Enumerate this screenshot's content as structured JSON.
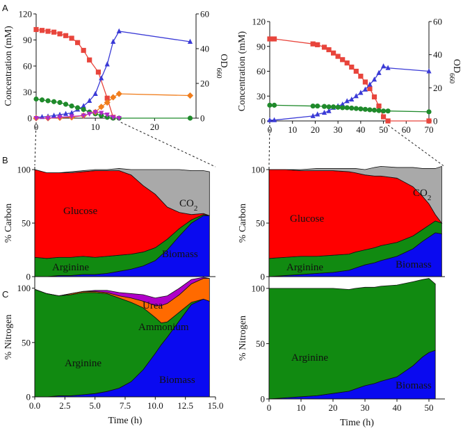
{
  "panel_letters": {
    "a": "A",
    "b": "B",
    "c": "C"
  },
  "chart_data": [
    {
      "id": "A-left",
      "type": "line",
      "ylabel": "Concentration (mM)",
      "y2label_main": "OD",
      "y2label_sub": "660",
      "xlim": [
        0,
        27
      ],
      "ylim": [
        0,
        120
      ],
      "y2lim": [
        0,
        60
      ],
      "xticks": [
        0,
        10,
        20
      ],
      "yticks": [
        0,
        30,
        60,
        90,
        120
      ],
      "y2ticks": [
        0,
        20,
        40,
        60
      ],
      "series": [
        {
          "name": "Glucose",
          "color": "#e8453c",
          "marker": "square",
          "axis": "left",
          "x": [
            0,
            1,
            2,
            3,
            4,
            5,
            6,
            7,
            8,
            9,
            10.5,
            12,
            13
          ],
          "y": [
            102,
            101,
            100,
            99,
            97,
            95,
            92,
            87,
            78,
            67,
            53,
            23,
            1
          ]
        },
        {
          "name": "OD660",
          "color": "#3a3ad6",
          "marker": "triangle",
          "axis": "right",
          "x": [
            0,
            1,
            2,
            3,
            4,
            5,
            6,
            7,
            8,
            9,
            10,
            11,
            12,
            13,
            14,
            26
          ],
          "y": [
            0.5,
            0.7,
            1,
            1.5,
            2,
            2.5,
            3,
            5,
            7,
            10,
            14,
            23,
            31,
            44,
            50,
            44
          ]
        },
        {
          "name": "Arginine",
          "color": "#1f8a2b",
          "marker": "circle",
          "axis": "left",
          "x": [
            0,
            1,
            2,
            3,
            4,
            5,
            6,
            7,
            8,
            9,
            10,
            11,
            12,
            13,
            14,
            26
          ],
          "y": [
            22,
            21,
            20,
            19,
            18,
            16,
            14,
            12,
            10,
            7,
            5,
            3,
            1,
            0,
            0,
            0
          ]
        },
        {
          "name": "Ammonium",
          "color": "#f07d1c",
          "marker": "diamond",
          "axis": "left",
          "x": [
            0,
            2,
            4,
            6,
            8,
            10,
            11,
            12,
            13,
            14,
            26
          ],
          "y": [
            0,
            0,
            0.5,
            1,
            3,
            7,
            13,
            18,
            24,
            28,
            26
          ]
        },
        {
          "name": "Urea",
          "color": "#b02bc8",
          "marker": "triangle-down",
          "axis": "left",
          "x": [
            0,
            2,
            4,
            6,
            8,
            9,
            10,
            11,
            12,
            13,
            14
          ],
          "y": [
            0,
            0,
            1,
            2,
            3,
            5,
            7,
            6,
            4,
            1,
            0
          ]
        }
      ]
    },
    {
      "id": "A-right",
      "type": "line",
      "ylabel": "Concentration (mM)",
      "y2label_main": "OD",
      "y2label_sub": "660",
      "xlim": [
        0,
        70
      ],
      "ylim": [
        0,
        120
      ],
      "y2lim": [
        0,
        60
      ],
      "xticks": [
        0,
        10,
        20,
        30,
        40,
        50,
        60,
        70
      ],
      "yticks": [
        0,
        30,
        60,
        90,
        120
      ],
      "y2ticks": [
        0,
        20,
        40,
        60
      ],
      "series": [
        {
          "name": "Glucose",
          "color": "#e8453c",
          "marker": "square",
          "axis": "left",
          "x": [
            0,
            2,
            19,
            21,
            24,
            26,
            28,
            30,
            32,
            34,
            36,
            38,
            40,
            42,
            44,
            46,
            48,
            50,
            52,
            70
          ],
          "y": [
            99,
            99,
            93,
            92,
            89,
            86,
            82,
            78,
            74,
            70,
            65,
            60,
            54,
            47,
            39,
            29,
            18,
            5,
            0,
            0
          ]
        },
        {
          "name": "OD660",
          "color": "#3a3ad6",
          "marker": "triangle",
          "axis": "right",
          "x": [
            0,
            2,
            19,
            21,
            24,
            26,
            28,
            30,
            32,
            34,
            36,
            38,
            40,
            42,
            44,
            46,
            48,
            50,
            52,
            70
          ],
          "y": [
            0.5,
            0.5,
            3,
            4,
            5,
            6,
            8,
            9,
            10,
            12,
            13,
            15,
            17,
            19,
            22,
            25,
            29,
            33,
            32,
            30
          ]
        },
        {
          "name": "Arginine",
          "color": "#1f8a2b",
          "marker": "circle",
          "axis": "left",
          "x": [
            0,
            2,
            19,
            21,
            24,
            26,
            28,
            30,
            32,
            34,
            36,
            38,
            40,
            42,
            44,
            46,
            48,
            50,
            52,
            70
          ],
          "y": [
            19,
            19,
            18,
            18,
            17.5,
            17,
            17,
            16.5,
            16,
            16,
            15.5,
            15,
            14.5,
            14,
            13.5,
            13,
            12.5,
            12,
            12,
            11
          ]
        }
      ]
    },
    {
      "id": "B-left",
      "type": "area",
      "ylabel": "% Carbon",
      "xlim": [
        0,
        15
      ],
      "ylim": [
        0,
        100
      ],
      "yticks": [
        0,
        50,
        100
      ],
      "x": [
        0,
        1,
        2,
        3,
        4,
        5,
        6,
        7,
        8,
        9,
        10,
        11,
        12,
        13,
        14,
        14.5
      ],
      "series": [
        {
          "name": "Biomass",
          "color": "#0a0af0",
          "values": [
            0,
            0,
            1,
            1,
            2,
            2,
            3,
            5,
            7,
            10,
            15,
            25,
            38,
            50,
            57,
            57
          ]
        },
        {
          "name": "Arginine",
          "color": "#118a11",
          "values": [
            18,
            17,
            17,
            17,
            17,
            16,
            16,
            15,
            14,
            13,
            12,
            10,
            7,
            3,
            1,
            0
          ]
        },
        {
          "name": "Glucose",
          "color": "#ff0000",
          "values": [
            82,
            80,
            79,
            79,
            79,
            81,
            80,
            79,
            74,
            62,
            50,
            30,
            15,
            5,
            1,
            0
          ]
        },
        {
          "name": "CO2",
          "color": "#a9a9a9",
          "values": [
            0,
            0,
            0,
            1,
            1,
            1,
            1,
            2,
            5,
            15,
            23,
            35,
            40,
            41,
            40,
            41
          ]
        }
      ],
      "labels": {
        "glucose": "Glucose",
        "arginine": "Arginine",
        "biomass": "Biomass",
        "co2_main": "CO",
        "co2_sub": "2"
      }
    },
    {
      "id": "B-right",
      "type": "area",
      "ylabel": "% Carbon",
      "xlim": [
        0,
        55
      ],
      "ylim": [
        0,
        100
      ],
      "yticks": [
        0,
        50,
        100
      ],
      "x": [
        0,
        5,
        10,
        15,
        20,
        25,
        27,
        30,
        33,
        35,
        40,
        45,
        48,
        50,
        52,
        54
      ],
      "series": [
        {
          "name": "Biomass",
          "color": "#0a0af0",
          "values": [
            0,
            1,
            2,
            3,
            4,
            6,
            8,
            11,
            13,
            15,
            19,
            26,
            33,
            37,
            41,
            40
          ]
        },
        {
          "name": "Arginine",
          "color": "#118a11",
          "values": [
            17,
            17,
            17,
            16,
            16,
            15,
            15,
            14,
            14,
            14,
            13,
            12,
            11,
            11,
            11,
            10
          ]
        },
        {
          "name": "Glucose",
          "color": "#ff0000",
          "values": [
            83,
            82,
            80,
            80,
            79,
            77,
            74,
            70,
            67,
            65,
            60,
            46,
            31,
            20,
            6,
            0
          ]
        },
        {
          "name": "CO2",
          "color": "#a9a9a9",
          "values": [
            0,
            0,
            1,
            2,
            2,
            3,
            4,
            5,
            8,
            9,
            10,
            18,
            26,
            33,
            43,
            53
          ]
        }
      ],
      "labels": {
        "glucose": "Glucose",
        "arginine": "Arginine",
        "biomass": "Biomass",
        "co2_main": "CO",
        "co2_sub": "2"
      }
    },
    {
      "id": "C-left",
      "type": "area",
      "ylabel": "% Nitrogen",
      "xlabel": "Time (h)",
      "xlim": [
        0,
        15
      ],
      "ylim": [
        0,
        110
      ],
      "yticks": [
        0,
        50,
        100
      ],
      "xticks": [
        0,
        2.5,
        5,
        7.5,
        10,
        12.5,
        15
      ],
      "xtick_labels": [
        "0.0",
        "2.5",
        "5.0",
        "7.5",
        "10.0",
        "12.5",
        "15.0"
      ],
      "x": [
        0,
        1,
        2,
        3,
        4,
        5,
        6,
        7,
        8,
        9,
        10,
        10.5,
        11,
        12,
        13,
        14,
        14.5
      ],
      "series": [
        {
          "name": "Biomass",
          "color": "#0a0af0",
          "values": [
            0,
            0,
            1,
            1,
            2,
            3,
            5,
            8,
            14,
            25,
            40,
            48,
            55,
            70,
            85,
            90,
            88
          ]
        },
        {
          "name": "Arginine",
          "color": "#118a11",
          "values": [
            99,
            95,
            92,
            93,
            94,
            93,
            90,
            83,
            73,
            57,
            33,
            20,
            14,
            8,
            2,
            0,
            0
          ]
        },
        {
          "name": "Ammonium",
          "color": "#ff6a00",
          "values": [
            0,
            0,
            0,
            1,
            1,
            1,
            1,
            2,
            4,
            6,
            11,
            16,
            17,
            16,
            17,
            19,
            21
          ]
        },
        {
          "name": "Urea",
          "color": "#b000c8",
          "values": [
            0,
            0,
            0,
            0,
            0,
            1,
            2,
            3,
            4,
            6,
            7,
            8,
            7,
            6,
            4,
            1,
            0
          ]
        }
      ],
      "labels": {
        "arginine": "Arginine",
        "biomass": "Biomass",
        "ammonium": "Ammonium",
        "urea": "Urea"
      }
    },
    {
      "id": "C-right",
      "type": "area",
      "ylabel": "% Nitrogen",
      "xlabel": "Time (h)",
      "xlim": [
        0,
        55
      ],
      "ylim": [
        0,
        110
      ],
      "yticks": [
        0,
        50,
        100
      ],
      "xticks": [
        0,
        10,
        20,
        30,
        40,
        50
      ],
      "xtick_labels": [
        "0",
        "10",
        "20",
        "30",
        "40",
        "50"
      ],
      "x": [
        0,
        5,
        10,
        15,
        20,
        25,
        27,
        30,
        33,
        35,
        40,
        45,
        48,
        50,
        52
      ],
      "series": [
        {
          "name": "Biomass",
          "color": "#0a0af0",
          "values": [
            0,
            1,
            2,
            3,
            5,
            7,
            9,
            12,
            14,
            16,
            20,
            30,
            38,
            42,
            44
          ]
        },
        {
          "name": "Arginine",
          "color": "#118a11",
          "values": [
            100,
            99,
            98,
            97,
            95,
            92,
            91,
            89,
            87,
            86,
            83,
            76,
            70,
            67,
            60
          ]
        }
      ],
      "labels": {
        "arginine": "Arginine",
        "biomass": "Biomass"
      }
    }
  ]
}
